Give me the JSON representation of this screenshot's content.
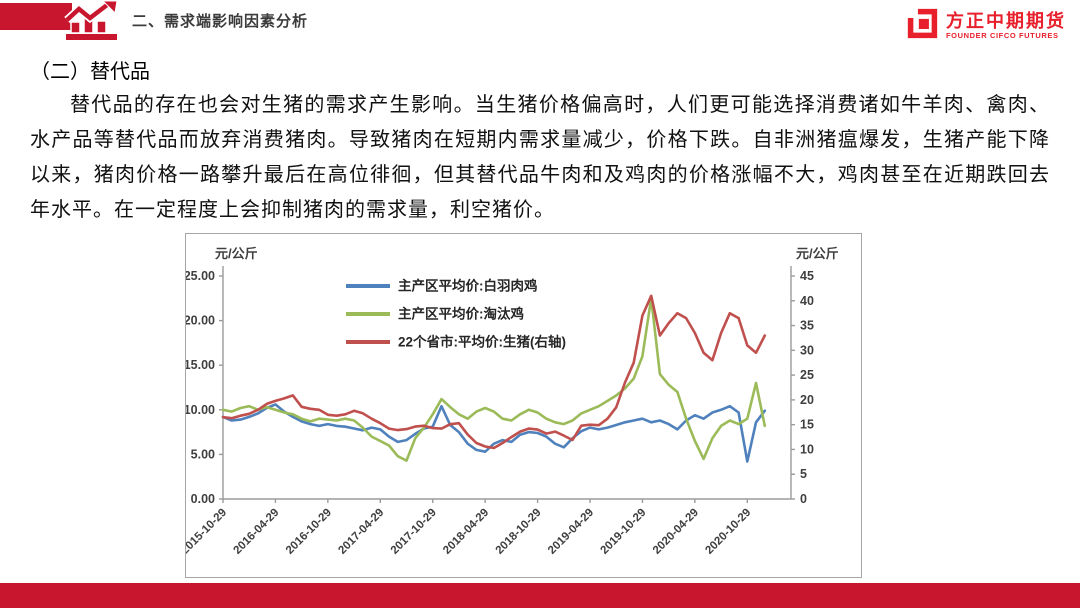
{
  "header": {
    "title": "二、需求端影响因素分析",
    "logo_cn": "方正中期期货",
    "logo_en": "FOUNDER CIFCO FUTURES"
  },
  "section": {
    "heading": "（二）替代品"
  },
  "paragraph": {
    "lines": [
      "替代品的存在也会对生猪的需求产生影响。当生猪价格偏高时，人们更可能选择消费诸如牛羊肉、禽肉、",
      "水产品等替代品而放弃消费猪肉。导致猪肉在短期内需求量减少，价格下跌。自非洲猪瘟爆发，生猪产能下降",
      "以来，猪肉价格一路攀升最后在高位徘徊，但其替代品牛肉和及鸡肉的价格涨幅不大，鸡肉甚至在近期跌回去",
      "年水平。在一定程度上会抑制猪肉的需求量，利空猪价。"
    ]
  },
  "colors": {
    "brand_red": "#C9162F",
    "logo_red": "#E8202C",
    "series_blue": "#4F81BD",
    "series_green": "#9BBB59",
    "series_red": "#C0504D",
    "axis_gray": "#9B9B9B",
    "tick_text": "#3F3F3F",
    "legend_text": "#262626"
  },
  "chart_data": {
    "type": "line",
    "title": "",
    "left_axis": {
      "label": "元/公斤",
      "min": 0,
      "max": 25,
      "ticks": [
        "25.00",
        "20.00",
        "15.00",
        "10.00",
        "5.00",
        "0.00"
      ]
    },
    "right_axis": {
      "label": "元/公斤",
      "min": 0,
      "max": 45,
      "ticks": [
        "45",
        "40",
        "35",
        "30",
        "25",
        "20",
        "15",
        "10",
        "5",
        "0"
      ]
    },
    "x_start": "2015-10",
    "x_step_months": 1,
    "tick_every": 6,
    "x_tick_labels": [
      "2015-10-29",
      "2016-04-29",
      "2016-10-29",
      "2017-04-29",
      "2017-10-29",
      "2018-04-29",
      "2018-10-29",
      "2019-04-29",
      "2019-10-29",
      "2020-04-29",
      "2020-10-29"
    ],
    "grid": false,
    "legend_position": "top-left-inside",
    "series": [
      {
        "name": "主产区平均价:白羽肉鸡",
        "axis": "left",
        "color_key": "series_blue",
        "values": [
          9.2,
          8.8,
          8.9,
          9.2,
          9.6,
          10.2,
          10.6,
          9.8,
          9.2,
          8.7,
          8.4,
          8.2,
          8.4,
          8.2,
          8.1,
          7.9,
          7.7,
          8.0,
          7.8,
          7.0,
          6.4,
          6.6,
          7.3,
          7.9,
          8.1,
          10.4,
          8.3,
          7.5,
          6.2,
          5.5,
          5.3,
          6.2,
          6.6,
          6.4,
          7.2,
          7.5,
          7.4,
          7.0,
          6.2,
          5.8,
          6.8,
          7.6,
          8.0,
          7.8,
          8.0,
          8.3,
          8.6,
          8.8,
          9.0,
          8.6,
          8.8,
          8.4,
          7.8,
          8.8,
          9.4,
          9.0,
          9.7,
          10.0,
          10.4,
          9.7,
          4.2,
          8.6,
          9.9
        ]
      },
      {
        "name": "主产区平均价:淘汰鸡",
        "axis": "left",
        "color_key": "series_green",
        "values": [
          10.0,
          9.8,
          10.2,
          10.4,
          10.0,
          10.3,
          10.0,
          9.7,
          9.5,
          9.0,
          8.7,
          9.0,
          8.9,
          8.8,
          9.0,
          8.8,
          8.0,
          7.0,
          6.5,
          6.0,
          4.8,
          4.3,
          6.8,
          8.0,
          9.5,
          11.2,
          10.3,
          9.5,
          9.0,
          9.8,
          10.2,
          9.8,
          9.0,
          8.8,
          9.5,
          10.0,
          9.7,
          9.0,
          8.6,
          8.4,
          8.8,
          9.6,
          10.0,
          10.4,
          11.0,
          11.6,
          12.4,
          13.5,
          16.0,
          22.5,
          14.0,
          12.8,
          12.0,
          9.0,
          6.5,
          4.5,
          6.8,
          8.2,
          8.8,
          8.4,
          9.0,
          13.0,
          8.2
        ]
      },
      {
        "name": "22个省市:平均价:生猪(右轴)",
        "axis": "right",
        "color_key": "series_red",
        "values": [
          16.5,
          16.3,
          16.8,
          17.2,
          18.0,
          19.2,
          19.8,
          20.3,
          20.9,
          18.6,
          18.2,
          18.0,
          17.0,
          16.8,
          17.1,
          17.8,
          17.3,
          16.2,
          15.3,
          14.2,
          13.9,
          14.1,
          14.6,
          14.8,
          14.3,
          14.2,
          15.1,
          15.3,
          13.0,
          11.3,
          10.6,
          10.3,
          11.3,
          12.5,
          13.6,
          14.2,
          14.0,
          13.2,
          13.6,
          12.8,
          11.9,
          14.8,
          15.0,
          14.9,
          16.2,
          18.5,
          23.5,
          27.5,
          37.0,
          41.0,
          33.0,
          35.5,
          37.5,
          36.5,
          33.5,
          29.5,
          28.0,
          33.5,
          37.5,
          36.5,
          31.0,
          29.5,
          33.0
        ]
      }
    ]
  }
}
